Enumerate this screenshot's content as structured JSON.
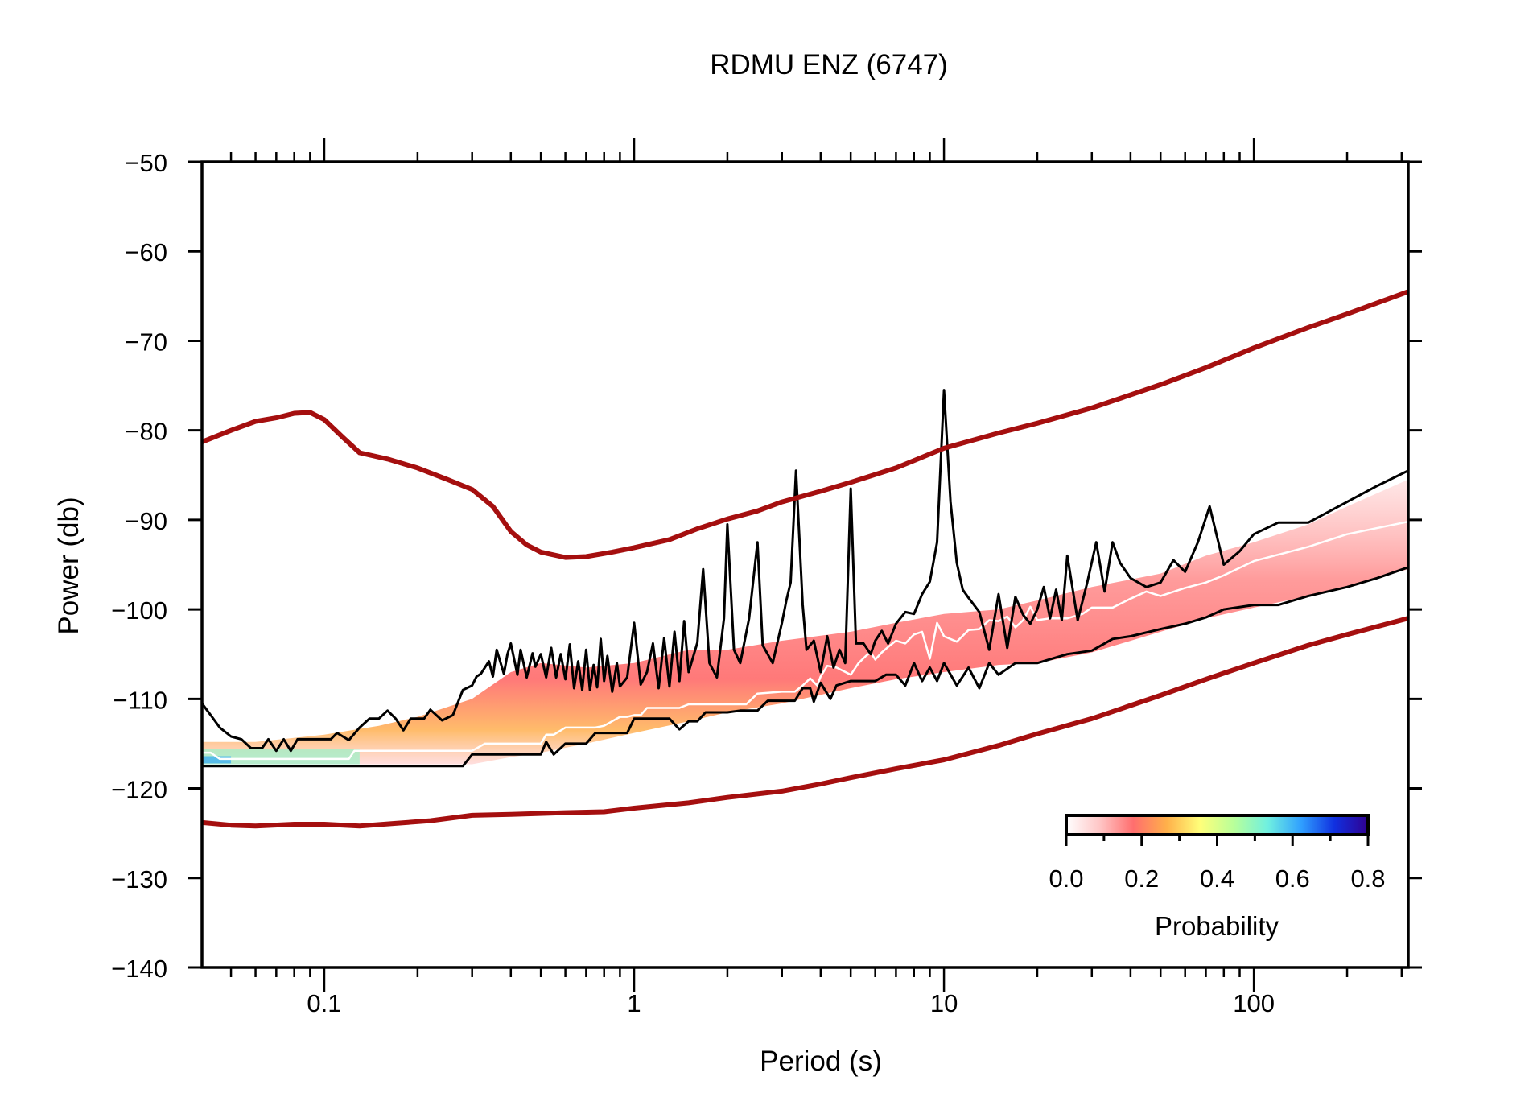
{
  "chart_data": {
    "type": "heatmap",
    "title": "RDMU ENZ (6747)",
    "xlabel": "Period (s)",
    "ylabel": "Power (db)",
    "xscale": "log",
    "xlim": [
      0.0403,
      315
    ],
    "ylim": [
      -140,
      -50
    ],
    "grid": false,
    "x_ticks": [
      {
        "value": 0.1,
        "label": "0.1"
      },
      {
        "value": 1,
        "label": "1"
      },
      {
        "value": 10,
        "label": "10"
      },
      {
        "value": 100,
        "label": "100"
      }
    ],
    "y_ticks": [
      {
        "value": -50,
        "label": "−50"
      },
      {
        "value": -60,
        "label": "−60"
      },
      {
        "value": -70,
        "label": "−70"
      },
      {
        "value": -80,
        "label": "−80"
      },
      {
        "value": -90,
        "label": "−90"
      },
      {
        "value": -100,
        "label": "−100"
      },
      {
        "value": -110,
        "label": "−110"
      },
      {
        "value": -120,
        "label": "−120"
      },
      {
        "value": -130,
        "label": "−130"
      },
      {
        "value": -140,
        "label": "−140"
      }
    ],
    "series": [
      {
        "name": "NHNM",
        "color": "#a50f0f",
        "x": [
          0.0403,
          0.05,
          0.06,
          0.07,
          0.08,
          0.09,
          0.1,
          0.115,
          0.13,
          0.16,
          0.2,
          0.25,
          0.3,
          0.35,
          0.4,
          0.45,
          0.5,
          0.6,
          0.7,
          0.85,
          1,
          1.3,
          1.6,
          2,
          2.5,
          3,
          4,
          5,
          7,
          10,
          15,
          20,
          30,
          50,
          70,
          100,
          150,
          200,
          315
        ],
        "y": [
          -81.3,
          -80,
          -79,
          -78.6,
          -78.1,
          -78.0,
          -78.8,
          -80.8,
          -82.5,
          -83.2,
          -84.2,
          -85.5,
          -86.6,
          -88.5,
          -91.3,
          -92.8,
          -93.6,
          -94.2,
          -94.1,
          -93.6,
          -93.1,
          -92.2,
          -91,
          -89.9,
          -89,
          -88,
          -86.8,
          -85.8,
          -84.2,
          -82,
          -80.3,
          -79.2,
          -77.5,
          -74.9,
          -73,
          -70.8,
          -68.5,
          -67,
          -64.5
        ]
      },
      {
        "name": "NLNM",
        "color": "#a50f0f",
        "x": [
          0.0403,
          0.05,
          0.06,
          0.08,
          0.1,
          0.13,
          0.17,
          0.22,
          0.3,
          0.4,
          0.6,
          0.8,
          1,
          1.5,
          2,
          3,
          4,
          5,
          7,
          10,
          15,
          20,
          30,
          50,
          70,
          100,
          150,
          200,
          315
        ],
        "y": [
          -123.8,
          -124.1,
          -124.2,
          -124.0,
          -124.0,
          -124.2,
          -123.9,
          -123.6,
          -123.0,
          -122.9,
          -122.7,
          -122.6,
          -122.2,
          -121.6,
          -121.0,
          -120.3,
          -119.5,
          -118.8,
          -117.8,
          -116.8,
          -115.2,
          -113.9,
          -112.2,
          -109.6,
          -107.8,
          -106.0,
          -104.0,
          -102.8,
          -101.0
        ]
      },
      {
        "name": "Maximum",
        "color": "#000000",
        "x": [
          0.0403,
          0.043,
          0.046,
          0.05,
          0.054,
          0.058,
          0.06,
          0.063,
          0.066,
          0.07,
          0.074,
          0.078,
          0.082,
          0.09,
          0.1,
          0.105,
          0.11,
          0.12,
          0.13,
          0.14,
          0.15,
          0.16,
          0.17,
          0.18,
          0.19,
          0.2,
          0.21,
          0.22,
          0.24,
          0.26,
          0.28,
          0.3,
          0.31,
          0.32,
          0.34,
          0.35,
          0.36,
          0.38,
          0.39,
          0.4,
          0.42,
          0.43,
          0.45,
          0.47,
          0.48,
          0.5,
          0.52,
          0.54,
          0.56,
          0.58,
          0.6,
          0.62,
          0.64,
          0.66,
          0.68,
          0.7,
          0.72,
          0.74,
          0.76,
          0.78,
          0.8,
          0.82,
          0.85,
          0.88,
          0.9,
          0.95,
          1.0,
          1.05,
          1.1,
          1.15,
          1.2,
          1.25,
          1.3,
          1.35,
          1.4,
          1.45,
          1.5,
          1.6,
          1.67,
          1.75,
          1.85,
          1.95,
          2.0,
          2.1,
          2.2,
          2.35,
          2.5,
          2.6,
          2.8,
          3.0,
          3.1,
          3.2,
          3.33,
          3.5,
          3.6,
          3.8,
          4.0,
          4.2,
          4.4,
          4.6,
          4.8,
          5.0,
          5.2,
          5.5,
          5.8,
          6.0,
          6.3,
          6.6,
          7.0,
          7.5,
          8.0,
          8.5,
          9.0,
          9.5,
          10.0,
          10.5,
          11.0,
          11.5,
          12,
          13,
          14,
          15,
          16,
          17,
          18,
          19,
          20,
          21,
          22,
          23,
          24,
          25,
          27,
          29,
          31,
          33,
          35,
          37,
          40,
          45,
          50,
          55,
          60,
          66,
          72,
          80,
          90,
          100,
          120,
          150,
          200,
          250,
          315
        ],
        "y": [
          -110.5,
          -111.8,
          -113.2,
          -114.2,
          -114.5,
          -115.5,
          -115.5,
          -115.5,
          -114.5,
          -115.8,
          -114.5,
          -115.8,
          -114.5,
          -114.5,
          -114.5,
          -114.5,
          -113.8,
          -114.6,
          -113.2,
          -112.2,
          -112.2,
          -111.3,
          -112.2,
          -113.5,
          -112.2,
          -112.2,
          -112.2,
          -111.2,
          -112.4,
          -111.8,
          -109.0,
          -108.5,
          -107.5,
          -107.2,
          -105.8,
          -107.5,
          -104.5,
          -107.2,
          -105.0,
          -103.8,
          -107.3,
          -104.5,
          -107.6,
          -104.9,
          -106.4,
          -105.0,
          -107.6,
          -104.3,
          -107.6,
          -105.0,
          -107.8,
          -103.9,
          -108.8,
          -105.8,
          -109.0,
          -104.5,
          -109.0,
          -106.2,
          -108.7,
          -103.3,
          -108.0,
          -105.2,
          -109.2,
          -106.0,
          -108.6,
          -107.6,
          -101.5,
          -108.4,
          -107.0,
          -103.8,
          -108.8,
          -103.2,
          -108.6,
          -102.5,
          -108.0,
          -101.3,
          -107.0,
          -103.7,
          -95.5,
          -106.0,
          -107.6,
          -101.0,
          -90.5,
          -104.5,
          -106.0,
          -101.0,
          -92.5,
          -104.0,
          -106.0,
          -101.5,
          -99.0,
          -97.0,
          -84.5,
          -99.5,
          -104.5,
          -103.5,
          -107.0,
          -103.0,
          -106.5,
          -104.5,
          -106.0,
          -86.5,
          -103.8,
          -103.8,
          -105.0,
          -103.5,
          -102.4,
          -103.8,
          -101.6,
          -100.3,
          -100.5,
          -98.3,
          -96.9,
          -92.5,
          -75.5,
          -88.0,
          -94.8,
          -97.8,
          -98.7,
          -100.3,
          -104.5,
          -98.3,
          -104.3,
          -98.6,
          -100.6,
          -101.6,
          -100.0,
          -97.5,
          -101.0,
          -97.8,
          -101.2,
          -94.0,
          -101.2,
          -97.0,
          -92.5,
          -98.0,
          -92.5,
          -94.8,
          -96.5,
          -97.5,
          -97.0,
          -94.5,
          -95.8,
          -92.5,
          -88.5,
          -95.0,
          -93.5,
          -91.6,
          -90.3,
          -90.3,
          -88.0,
          -86.2,
          -84.5
        ]
      },
      {
        "name": "Minimum",
        "color": "#000000",
        "x": [
          0.0403,
          0.05,
          0.08,
          0.1,
          0.15,
          0.2,
          0.25,
          0.28,
          0.3,
          0.35,
          0.4,
          0.45,
          0.5,
          0.52,
          0.55,
          0.6,
          0.65,
          0.7,
          0.75,
          0.8,
          0.85,
          0.9,
          0.95,
          1.0,
          1.1,
          1.2,
          1.3,
          1.4,
          1.5,
          1.6,
          1.7,
          1.8,
          1.9,
          2.0,
          2.2,
          2.5,
          2.7,
          2.8,
          2.9,
          3.0,
          3.3,
          3.5,
          3.7,
          3.8,
          4.0,
          4.3,
          4.5,
          5.0,
          5.3,
          5.6,
          6.0,
          6.5,
          7.0,
          7.5,
          8.0,
          8.5,
          9.0,
          9.5,
          10,
          11,
          12,
          13,
          14,
          15,
          17,
          20,
          25,
          30,
          35,
          40,
          50,
          60,
          70,
          80,
          100,
          120,
          150,
          200,
          250,
          315
        ],
        "y": [
          -117.5,
          -117.5,
          -117.5,
          -117.5,
          -117.5,
          -117.5,
          -117.5,
          -117.5,
          -116.2,
          -116.2,
          -116.2,
          -116.2,
          -116.2,
          -114.8,
          -116.2,
          -115.0,
          -115.0,
          -115.0,
          -113.8,
          -113.8,
          -113.8,
          -113.8,
          -113.8,
          -112.2,
          -112.2,
          -112.2,
          -112.2,
          -113.4,
          -112.5,
          -112.5,
          -111.5,
          -111.5,
          -111.5,
          -111.5,
          -111.3,
          -111.3,
          -110.2,
          -110.2,
          -110.2,
          -110.2,
          -110.2,
          -108.8,
          -108.8,
          -110.3,
          -108.2,
          -110.0,
          -108.5,
          -108.0,
          -108.0,
          -108.0,
          -108.0,
          -107.3,
          -107.3,
          -108.5,
          -106.0,
          -108.0,
          -106.5,
          -108.0,
          -106.0,
          -108.5,
          -106.5,
          -108.8,
          -106.0,
          -107.3,
          -106.0,
          -106.0,
          -105.0,
          -104.6,
          -103.3,
          -103.0,
          -102.2,
          -101.6,
          -100.9,
          -100.0,
          -99.5,
          -99.5,
          -98.5,
          -97.5,
          -96.5,
          -95.3
        ]
      },
      {
        "name": "Mode",
        "color": "#ffffff",
        "x": [
          0.0403,
          0.043,
          0.046,
          0.05,
          0.1,
          0.12,
          0.125,
          0.13,
          0.3,
          0.33,
          0.4,
          0.5,
          0.52,
          0.55,
          0.6,
          0.7,
          0.75,
          0.8,
          0.9,
          0.95,
          1.0,
          1.05,
          1.1,
          1.2,
          1.4,
          1.5,
          1.7,
          2.0,
          2.3,
          2.5,
          3.0,
          3.3,
          3.5,
          3.7,
          3.9,
          4.0,
          4.2,
          4.5,
          5.0,
          5.3,
          5.6,
          5.8,
          6.0,
          6.3,
          6.6,
          7.0,
          7.5,
          8.0,
          8.5,
          9.0,
          9.5,
          10,
          11,
          12,
          13,
          14,
          15,
          16,
          17,
          18,
          19,
          20,
          22,
          25,
          28,
          30,
          35,
          40,
          45,
          50,
          60,
          70,
          80,
          100,
          150,
          200,
          315
        ],
        "y": [
          -116.0,
          -116.0,
          -116.7,
          -116.7,
          -116.7,
          -116.7,
          -115.8,
          -115.8,
          -115.8,
          -115.0,
          -115.0,
          -115.0,
          -114.0,
          -114.0,
          -113.2,
          -113.2,
          -113.2,
          -113.0,
          -112.0,
          -112.0,
          -111.8,
          -111.8,
          -111.0,
          -111.0,
          -111.0,
          -110.6,
          -110.6,
          -110.6,
          -110.6,
          -109.4,
          -109.2,
          -109.2,
          -108.5,
          -107.7,
          -108.5,
          -107.5,
          -106.3,
          -106.5,
          -107.3,
          -106.0,
          -105.2,
          -104.8,
          -105.6,
          -104.8,
          -104.2,
          -103.5,
          -103.8,
          -102.8,
          -102.5,
          -105.5,
          -101.5,
          -103.0,
          -103.6,
          -102.3,
          -102.2,
          -101.2,
          -101.3,
          -100.8,
          -102.0,
          -101.2,
          -99.7,
          -101.2,
          -101.0,
          -101.0,
          -100.5,
          -99.8,
          -99.8,
          -98.8,
          -98.0,
          -98.5,
          -97.6,
          -97.0,
          -96.2,
          -94.6,
          -93.0,
          -91.6,
          -90.2
        ]
      }
    ],
    "pdf_band": {
      "x": [
        0.0403,
        0.06,
        0.1,
        0.15,
        0.2,
        0.3,
        0.4,
        0.5,
        0.7,
        1,
        1.5,
        2,
        3,
        5,
        7,
        10,
        15,
        20,
        30,
        50,
        70,
        100,
        150,
        200,
        315
      ],
      "low": [
        -117.3,
        -117.3,
        -117.3,
        -117.3,
        -117.3,
        -117.3,
        -116.5,
        -116.0,
        -115.0,
        -113.8,
        -112.5,
        -111.5,
        -110.5,
        -108.8,
        -107.8,
        -107.0,
        -106.2,
        -106.0,
        -104.8,
        -102.5,
        -101.0,
        -99.8,
        -98.5,
        -97.5,
        -95.5
      ],
      "high": [
        -114.8,
        -114.8,
        -114.0,
        -113.0,
        -112.0,
        -110.0,
        -107.0,
        -106.0,
        -106.5,
        -106.0,
        -104.5,
        -104.5,
        -103.5,
        -102.5,
        -101.5,
        -100.5,
        -100.0,
        -99.0,
        -97.5,
        -96.0,
        -94.0,
        -92.5,
        -90.5,
        -88.5,
        -85.5
      ],
      "mode_probability": 0.2
    },
    "colorbar": {
      "label": "Probability",
      "range": [
        0.0,
        0.8
      ],
      "ticks": [
        {
          "value": 0.0,
          "label": "0.0"
        },
        {
          "value": 0.2,
          "label": "0.2"
        },
        {
          "value": 0.4,
          "label": "0.4"
        },
        {
          "value": 0.6,
          "label": "0.6"
        },
        {
          "value": 0.8,
          "label": "0.8"
        }
      ],
      "minor_ticks": [
        0.1,
        0.3,
        0.5,
        0.7
      ],
      "colors": [
        "#ffffff",
        "#ffc6c6",
        "#ff6e6e",
        "#ffb04a",
        "#ffff7a",
        "#b8ff9a",
        "#70f0e0",
        "#30a0ff",
        "#1030e0",
        "#300090"
      ],
      "placement": "bottom-right"
    }
  }
}
